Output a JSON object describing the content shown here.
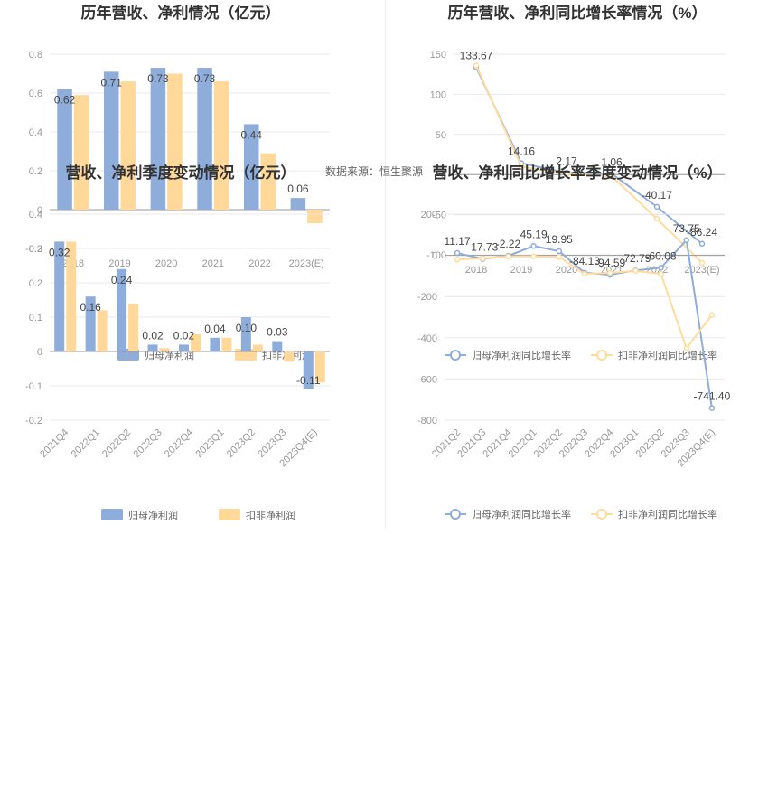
{
  "source_note": "数据来源：恒生聚源",
  "colors": {
    "bar_a": "#8fadda",
    "bar_b": "#ffd89a",
    "line_a": "#8fadda",
    "line_b": "#ffdc9c"
  },
  "chart_data": [
    {
      "id": "annual-profit",
      "type": "bar",
      "title": "历年营收、净利情况（亿元）",
      "categories": [
        "2018",
        "2019",
        "2020",
        "2021",
        "2022",
        "2023(E)"
      ],
      "series": [
        {
          "name": "归母净利润",
          "values": [
            0.62,
            0.71,
            0.73,
            0.73,
            0.44,
            0.06
          ]
        },
        {
          "name": "扣非净利润",
          "values": [
            0.59,
            0.66,
            0.7,
            0.66,
            0.29,
            -0.07
          ]
        }
      ],
      "data_labels": [
        "0.62",
        "0.71",
        "0.73",
        "0.73",
        "0.44",
        "0.06"
      ],
      "y_ticks": [
        0.8,
        0.6,
        0.4,
        0.2,
        0,
        -0.2
      ],
      "ylim": [
        -0.2,
        0.8
      ],
      "legend": "bottom"
    },
    {
      "id": "annual-growth",
      "type": "line",
      "title": "历年营收、净利同比增长率情况（%）",
      "categories": [
        "2018",
        "2019",
        "2020",
        "2021",
        "2022",
        "2023(E)"
      ],
      "series": [
        {
          "name": "归母净利润同比增长率",
          "values": [
            133.67,
            14.16,
            2.17,
            1.06,
            -40.17,
            -86.24
          ]
        },
        {
          "name": "扣非净利润同比增长率",
          "values": [
            136,
            10,
            1,
            -2,
            -55,
            -110
          ]
        }
      ],
      "data_labels": [
        "133.67",
        "14.16",
        "2.17",
        "1.06",
        "-40.17",
        "-86.24"
      ],
      "y_ticks": [
        150,
        100,
        50,
        0,
        -50,
        -100
      ],
      "ylim": [
        -100,
        150
      ],
      "legend": "bottom"
    },
    {
      "id": "quarterly-profit",
      "type": "bar",
      "title": "营收、净利季度变动情况（亿元）",
      "categories": [
        "2021Q4",
        "2022Q1",
        "2022Q2",
        "2022Q3",
        "2022Q4",
        "2023Q1",
        "2023Q2",
        "2023Q3",
        "2023Q4(E)"
      ],
      "series": [
        {
          "name": "归母净利润",
          "values": [
            0.32,
            0.16,
            0.24,
            0.02,
            0.02,
            0.04,
            0.1,
            0.03,
            -0.11
          ]
        },
        {
          "name": "扣非净利润",
          "values": [
            0.32,
            0.12,
            0.14,
            0.01,
            0.05,
            0.04,
            0.02,
            -0.03,
            -0.09
          ]
        }
      ],
      "data_labels": [
        "0.32",
        "0.16",
        "0.24",
        "0.02",
        "0.02",
        "0.04",
        "0.10",
        "0.03",
        "-0.11"
      ],
      "y_ticks": [
        0.4,
        0.3,
        0.2,
        0.1,
        0,
        -0.1,
        -0.2
      ],
      "ylim": [
        -0.2,
        0.4
      ],
      "legend": "bottom"
    },
    {
      "id": "quarterly-growth",
      "type": "line",
      "title": "营收、净利同比增长率季度变动情况（%）",
      "categories": [
        "2021Q2",
        "2021Q3",
        "2021Q4",
        "2022Q1",
        "2022Q2",
        "2022Q3",
        "2022Q4",
        "2023Q1",
        "2023Q2",
        "2023Q3",
        "2023Q4(E)"
      ],
      "series": [
        {
          "name": "归母净利润同比增长率",
          "values": [
            11.17,
            -17.73,
            -2.22,
            45.19,
            19.95,
            -84.13,
            -94.59,
            -72.79,
            -60.08,
            73.75,
            -741.4
          ]
        },
        {
          "name": "扣非净利润同比增长率",
          "values": [
            -20,
            -15,
            -5,
            -5,
            -8,
            -90,
            -85,
            -75,
            -90,
            -450,
            -290
          ]
        }
      ],
      "data_labels": [
        "11.17",
        "-17.73",
        "-2.22",
        "45.19",
        "19.95",
        "-84.13",
        "-94.59",
        "-72.79",
        "-60.08",
        "73.75",
        "-741.40"
      ],
      "y_ticks": [
        200,
        0,
        -200,
        -400,
        -600,
        -800
      ],
      "ylim": [
        -800,
        200
      ],
      "legend": "bottom"
    }
  ]
}
